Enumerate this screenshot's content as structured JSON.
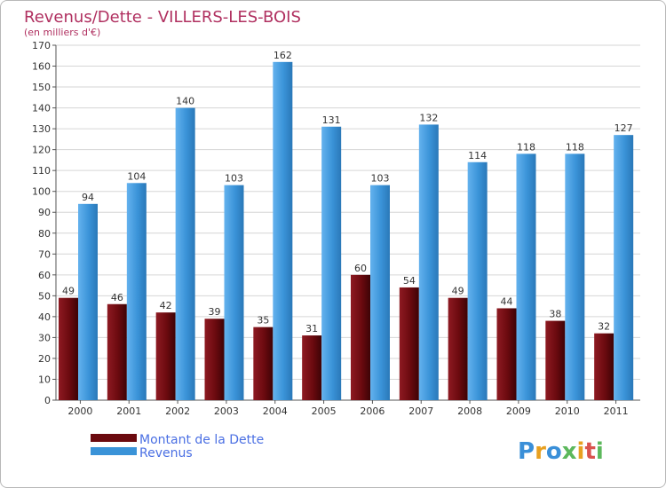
{
  "colors": {
    "dette": "#6b0a0f",
    "revenus": "#3a93d8",
    "title": "#b03060",
    "legend": "#4a6fe3"
  },
  "logo": {
    "text": "Proxiti"
  },
  "chart_data": {
    "type": "bar",
    "title": "Revenus/Dette - VILLERS-LES-BOIS",
    "subtitle": "(en milliers d'€)",
    "categories": [
      "2000",
      "2001",
      "2002",
      "2003",
      "2004",
      "2005",
      "2006",
      "2007",
      "2008",
      "2009",
      "2010",
      "2011"
    ],
    "series": [
      {
        "name": "Montant de la Dette",
        "values": [
          49,
          46,
          42,
          39,
          35,
          31,
          60,
          54,
          49,
          44,
          38,
          32
        ]
      },
      {
        "name": "Revenus",
        "values": [
          94,
          104,
          140,
          103,
          162,
          131,
          103,
          132,
          114,
          118,
          118,
          127
        ]
      }
    ],
    "ylim": [
      0,
      170
    ],
    "yticks": [
      0,
      10,
      20,
      30,
      40,
      50,
      60,
      70,
      80,
      90,
      100,
      110,
      120,
      130,
      140,
      150,
      160,
      170
    ],
    "grid": true,
    "legend": "bottom-left"
  }
}
